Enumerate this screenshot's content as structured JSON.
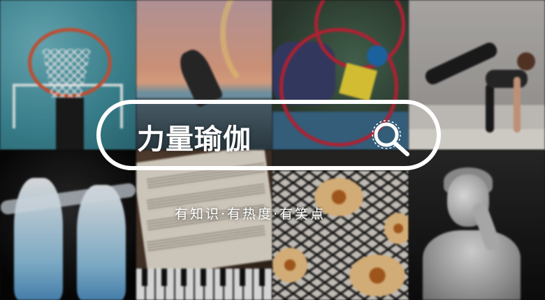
{
  "banner": {
    "title": "力量瑜伽",
    "subtitle": "有知识·有热度·有笑点",
    "search_icon": "search-icon"
  },
  "tiles": [
    {
      "subject": "basketball-hoop"
    },
    {
      "subject": "dancer-sunset"
    },
    {
      "subject": "wire-maze-toy"
    },
    {
      "subject": "yoga-pose"
    },
    {
      "subject": "classical-dancers"
    },
    {
      "subject": "sheet-music-piano"
    },
    {
      "subject": "cookies-cooling-rack"
    },
    {
      "subject": "statue-david"
    }
  ],
  "colors": {
    "outline": "#ffffff",
    "text": "#ffffff"
  }
}
